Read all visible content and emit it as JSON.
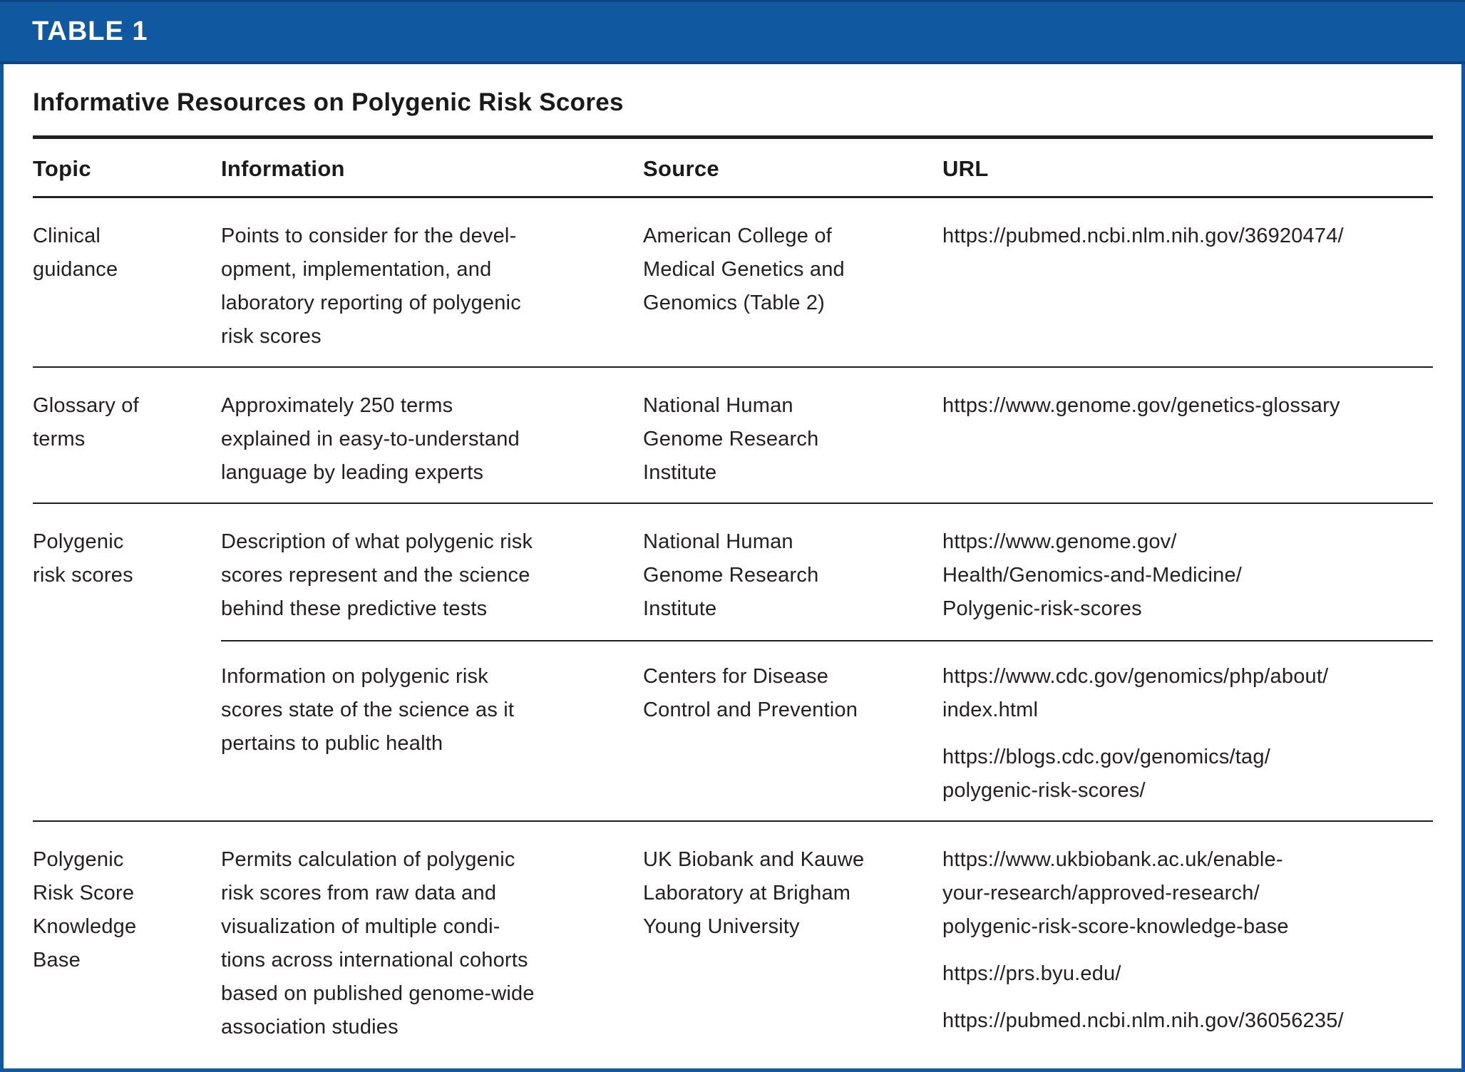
{
  "banner": {
    "label": "TABLE 1"
  },
  "title": "Informative Resources on Polygenic Risk Scores",
  "columns": [
    "Topic",
    "Information",
    "Source",
    "URL"
  ],
  "rows": [
    {
      "topic": "Clinical\nguidance",
      "entries": [
        {
          "information": "Points to consider for the devel-\nopment, implementation, and\nlaboratory reporting of polygenic\nrisk scores",
          "source": "American College of\nMedical Genetics and\nGenomics (Table 2)",
          "urls": [
            "https://pubmed.ncbi.nlm.nih.gov/36920474/"
          ]
        }
      ]
    },
    {
      "topic": "Glossary of\nterms",
      "entries": [
        {
          "information": "Approximately 250 terms\nexplained in easy-to-understand\nlanguage by leading experts",
          "source": "National Human\nGenome Research\nInstitute",
          "urls": [
            "https://www.genome.gov/genetics-glossary"
          ]
        }
      ]
    },
    {
      "topic": "Polygenic\nrisk scores",
      "entries": [
        {
          "information": "Description of what polygenic risk\nscores represent and the science\nbehind these predictive tests",
          "source": "National Human\nGenome Research\nInstitute",
          "urls": [
            "https://www.genome.gov/\nHealth/Genomics-and-Medicine/\nPolygenic-risk-scores"
          ]
        },
        {
          "information": "Information on polygenic risk\nscores state of the science as it\npertains to public health",
          "source": "Centers for Disease\nControl and Prevention",
          "urls": [
            "https://www.cdc.gov/genomics/php/about/\nindex.html",
            "https://blogs.cdc.gov/genomics/tag/\npolygenic-risk-scores/"
          ]
        }
      ]
    },
    {
      "topic": "Polygenic\nRisk Score\nKnowledge\nBase",
      "entries": [
        {
          "information": "Permits calculation of polygenic\nrisk scores from raw data and\nvisualization of multiple condi-\ntions across international cohorts\nbased on published genome-wide\nassociation studies",
          "source": "UK Biobank and Kauwe\nLaboratory at Brigham\nYoung University",
          "urls": [
            "https://www.ukbiobank.ac.uk/enable-\nyour-research/approved-research/\npolygenic-risk-score-knowledge-base",
            "https://prs.byu.edu/",
            "https://pubmed.ncbi.nlm.nih.gov/36056235/"
          ]
        }
      ]
    }
  ],
  "colors": {
    "banner_blue": "#1058A0",
    "border_blue": "#1058A0",
    "rule_black": "#231F20",
    "text_black": "#231F20",
    "banner_text": "#FFFFFF"
  }
}
